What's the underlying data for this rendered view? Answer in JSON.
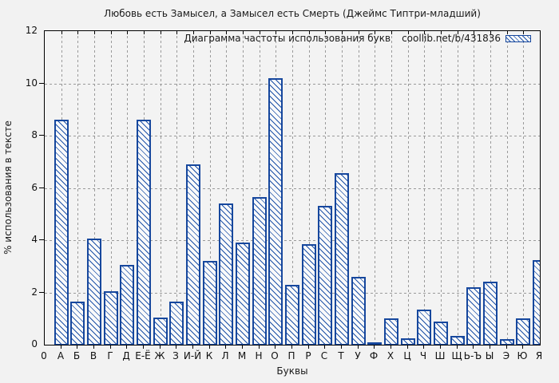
{
  "chart_data": {
    "type": "bar",
    "title": "Любовь есть Замысел, а Замысел есть Смерть (Джеймс Типтри-младший)",
    "xlabel": "Буквы",
    "ylabel": "% использования в тексте",
    "legend": {
      "label": "Диаграмма частоты использования букв",
      "source": "coollib.net/b/431836",
      "position": "top-right-inside"
    },
    "origin_tick_label": "0",
    "categories": [
      "А",
      "Б",
      "В",
      "Г",
      "Д",
      "Е-Ё",
      "Ж",
      "З",
      "И-Й",
      "К",
      "Л",
      "М",
      "Н",
      "О",
      "П",
      "Р",
      "С",
      "Т",
      "У",
      "Ф",
      "Х",
      "Ц",
      "Ч",
      "Ш",
      "Щ",
      "Ь-Ъ",
      "Ы",
      "Э",
      "Ю",
      "Я"
    ],
    "values": [
      8.6,
      1.65,
      4.05,
      2.05,
      3.05,
      8.6,
      1.05,
      1.65,
      6.9,
      3.2,
      5.4,
      3.9,
      5.65,
      10.2,
      2.3,
      3.85,
      5.3,
      6.55,
      2.6,
      0.1,
      1.0,
      0.25,
      1.35,
      0.9,
      0.35,
      2.2,
      2.4,
      0.2,
      1.0,
      3.25
    ],
    "y_ticks": [
      0,
      2,
      4,
      6,
      8,
      10,
      12
    ],
    "ylim": [
      0,
      12
    ],
    "grid": true,
    "hatch_style": "backslash-diagonal",
    "colors": {
      "bar_border": "#16479d",
      "bar_hatch": "#1e52a8",
      "bar_fill": "#fafafa",
      "background": "#f2f2f2",
      "gridline": "#9a9a9a",
      "axis": "#000000",
      "text": "#1a1a1a"
    }
  }
}
